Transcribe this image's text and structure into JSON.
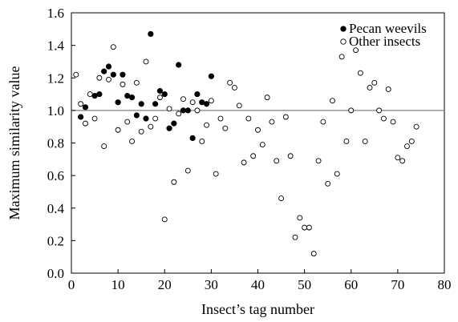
{
  "chart_data": {
    "type": "scatter",
    "xlabel": "Insect’s tag number",
    "ylabel": "Maximum similarity value",
    "xlim": [
      0,
      80
    ],
    "ylim": [
      0,
      1.6
    ],
    "xticks": [
      0,
      10,
      20,
      30,
      40,
      50,
      60,
      70,
      80
    ],
    "xtick_labels": [
      "0",
      "10",
      "20",
      "30",
      "40",
      "50",
      "60",
      "70",
      "80"
    ],
    "yticks": [
      0,
      0.2,
      0.4,
      0.6,
      0.8,
      1.0,
      1.2,
      1.4,
      1.6
    ],
    "ytick_labels": [
      "0.0",
      "0.2",
      "0.4",
      "0.6",
      "0.8",
      "1.0",
      "1.2",
      "1.4",
      "1.6"
    ],
    "grid": false,
    "legend_position": "top-right",
    "reference_line": {
      "y": 1.0,
      "color": "#7f7f7f"
    },
    "series": [
      {
        "name": "Pecan weevils",
        "marker": "filled-circle",
        "color": "#000000",
        "points": [
          [
            2,
            0.96
          ],
          [
            3,
            1.02
          ],
          [
            5,
            1.09
          ],
          [
            6,
            1.1
          ],
          [
            7,
            1.24
          ],
          [
            8,
            1.27
          ],
          [
            9,
            1.22
          ],
          [
            10,
            1.05
          ],
          [
            11,
            1.22
          ],
          [
            12,
            1.09
          ],
          [
            13,
            1.08
          ],
          [
            14,
            0.97
          ],
          [
            15,
            1.04
          ],
          [
            16,
            0.95
          ],
          [
            17,
            1.47
          ],
          [
            18,
            1.04
          ],
          [
            19,
            1.12
          ],
          [
            20,
            1.1
          ],
          [
            21,
            0.89
          ],
          [
            22,
            0.92
          ],
          [
            23,
            1.28
          ],
          [
            24,
            1.0
          ],
          [
            25,
            1.0
          ],
          [
            26,
            0.83
          ],
          [
            27,
            1.1
          ],
          [
            28,
            1.05
          ],
          [
            29,
            1.04
          ],
          [
            30,
            1.21
          ]
        ]
      },
      {
        "name": "Other insects",
        "marker": "open-circle",
        "color": "#000000",
        "points": [
          [
            1,
            1.22
          ],
          [
            2,
            1.04
          ],
          [
            3,
            0.92
          ],
          [
            4,
            1.1
          ],
          [
            5,
            0.95
          ],
          [
            6,
            1.2
          ],
          [
            7,
            0.78
          ],
          [
            8,
            1.19
          ],
          [
            9,
            1.39
          ],
          [
            10,
            0.88
          ],
          [
            11,
            1.16
          ],
          [
            12,
            0.93
          ],
          [
            13,
            0.81
          ],
          [
            14,
            1.17
          ],
          [
            15,
            0.87
          ],
          [
            16,
            1.3
          ],
          [
            17,
            0.9
          ],
          [
            18,
            0.95
          ],
          [
            19,
            1.08
          ],
          [
            20,
            0.33
          ],
          [
            21,
            1.01
          ],
          [
            22,
            0.56
          ],
          [
            23,
            0.98
          ],
          [
            24,
            1.07
          ],
          [
            25,
            0.63
          ],
          [
            26,
            1.05
          ],
          [
            27,
            1.0
          ],
          [
            28,
            0.81
          ],
          [
            29,
            0.91
          ],
          [
            30,
            1.06
          ],
          [
            31,
            0.61
          ],
          [
            32,
            0.95
          ],
          [
            33,
            0.89
          ],
          [
            34,
            1.17
          ],
          [
            35,
            1.14
          ],
          [
            36,
            1.03
          ],
          [
            37,
            0.68
          ],
          [
            38,
            0.95
          ],
          [
            39,
            0.72
          ],
          [
            40,
            0.88
          ],
          [
            41,
            0.79
          ],
          [
            42,
            1.08
          ],
          [
            43,
            0.93
          ],
          [
            44,
            0.69
          ],
          [
            45,
            0.46
          ],
          [
            46,
            0.96
          ],
          [
            47,
            0.72
          ],
          [
            48,
            0.22
          ],
          [
            49,
            0.34
          ],
          [
            50,
            0.28
          ],
          [
            51,
            0.28
          ],
          [
            52,
            0.12
          ],
          [
            53,
            0.69
          ],
          [
            54,
            0.93
          ],
          [
            55,
            0.55
          ],
          [
            56,
            1.06
          ],
          [
            57,
            0.61
          ],
          [
            58,
            1.33
          ],
          [
            59,
            0.81
          ],
          [
            60,
            1.0
          ],
          [
            61,
            1.37
          ],
          [
            62,
            1.23
          ],
          [
            63,
            0.81
          ],
          [
            64,
            1.14
          ],
          [
            65,
            1.17
          ],
          [
            66,
            1.0
          ],
          [
            67,
            0.95
          ],
          [
            68,
            1.13
          ],
          [
            69,
            0.93
          ],
          [
            70,
            0.71
          ],
          [
            71,
            0.69
          ],
          [
            72,
            0.78
          ],
          [
            73,
            0.81
          ],
          [
            74,
            0.9
          ]
        ]
      }
    ]
  }
}
